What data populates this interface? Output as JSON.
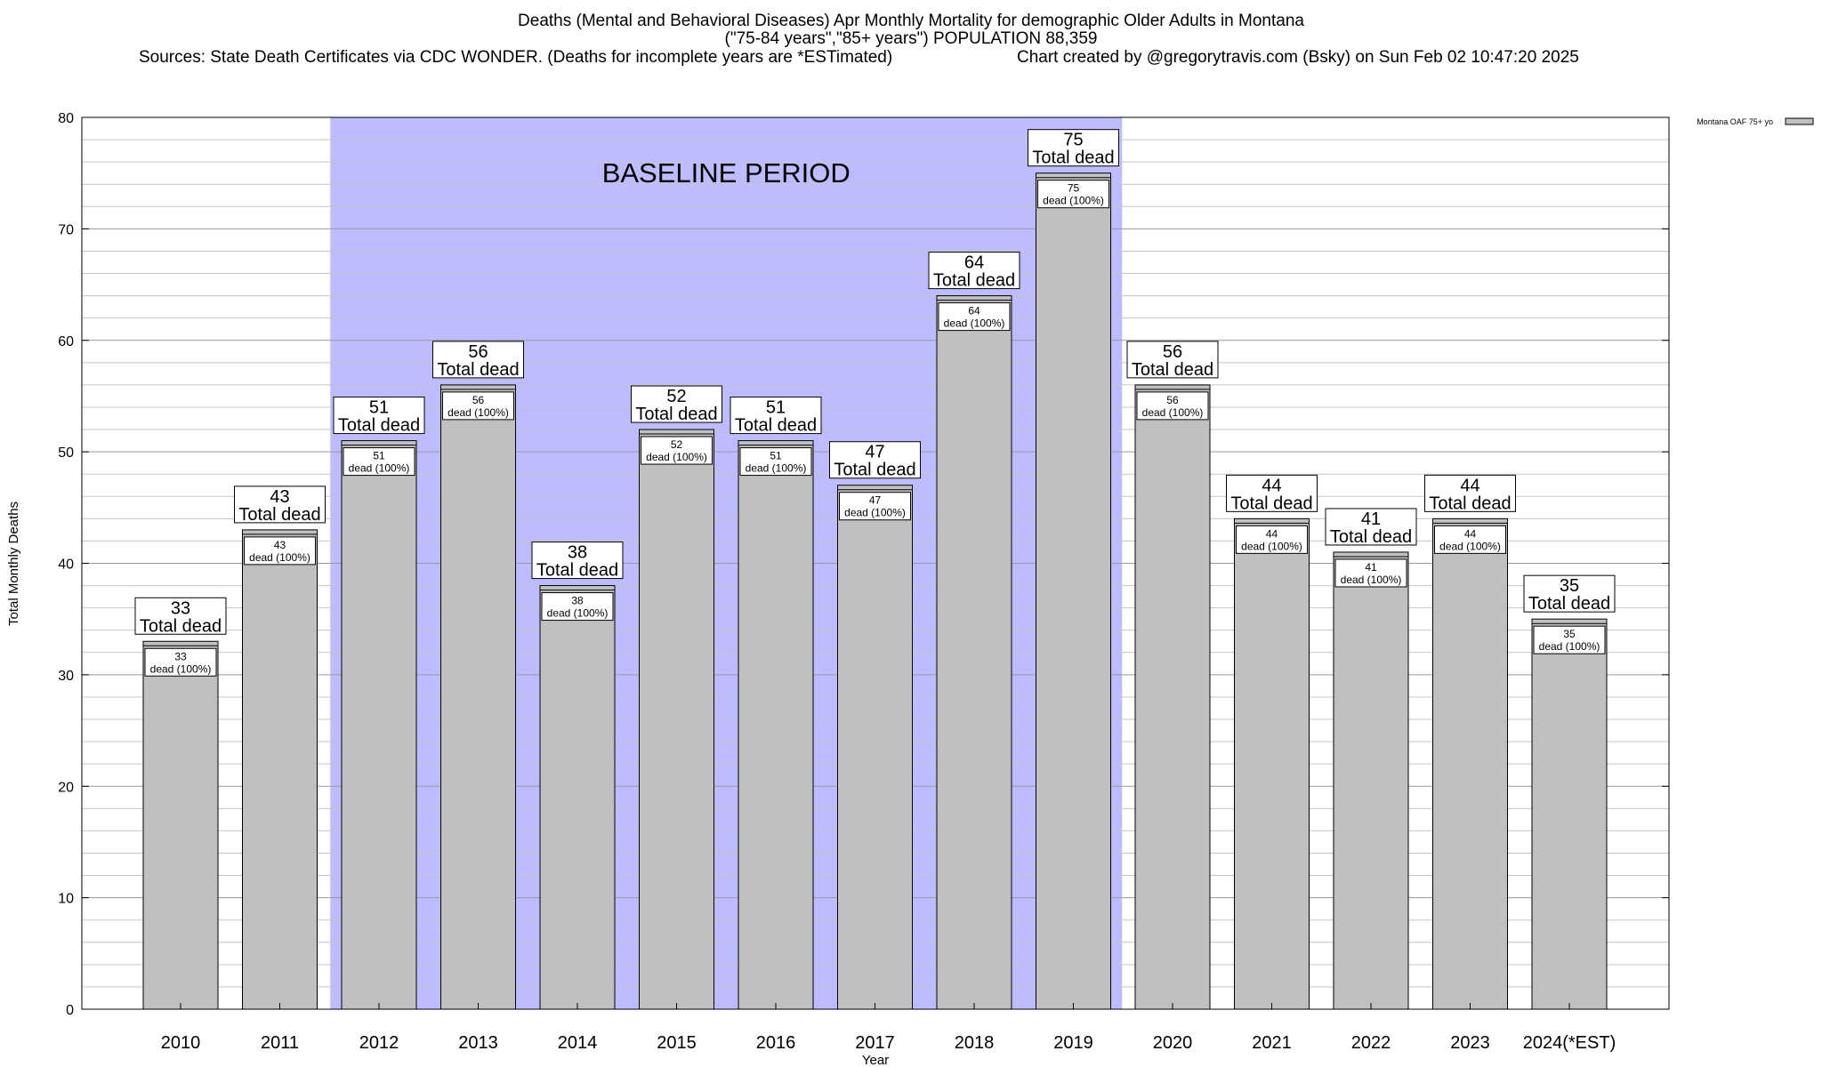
{
  "chart_data": {
    "type": "bar",
    "title_lines": [
      "Deaths (Mental and Behavioral Diseases) Apr Monthly Mortality for demographic Older Adults in Montana",
      "(\"75-84 years\",\"85+ years\") POPULATION 88,359"
    ],
    "source_left": "Sources: State Death Certificates via CDC WONDER. (Deaths for incomplete years are *ESTimated)",
    "source_right": "Chart created by @gregorytravis.com (Bsky) on Sun Feb 02 10:47:20 2025",
    "xlabel": "Year",
    "ylabel": "Total Monthly Deaths",
    "ylim": [
      0,
      80
    ],
    "y_major_ticks": [
      0,
      10,
      20,
      30,
      40,
      50,
      60,
      70,
      80
    ],
    "y_minor_step": 2,
    "categories": [
      "2010",
      "2011",
      "2012",
      "2013",
      "2014",
      "2015",
      "2016",
      "2017",
      "2018",
      "2019",
      "2020",
      "2021",
      "2022",
      "2023",
      "2024(*EST)"
    ],
    "series": [
      {
        "name": "Montana OAF 75+ yo",
        "color": "#c0c0c0",
        "values": [
          33,
          43,
          51,
          56,
          38,
          52,
          51,
          47,
          64,
          75,
          56,
          44,
          41,
          44,
          35
        ]
      }
    ],
    "total_label_suffix": "Total dead",
    "inner_label_suffix": "dead (100%)",
    "baseline_period": {
      "label": "BASELINE PERIOD",
      "from": "2012",
      "to": "2019",
      "color": "#bcbcff"
    },
    "legend_placement": "top-right",
    "grid": true
  }
}
